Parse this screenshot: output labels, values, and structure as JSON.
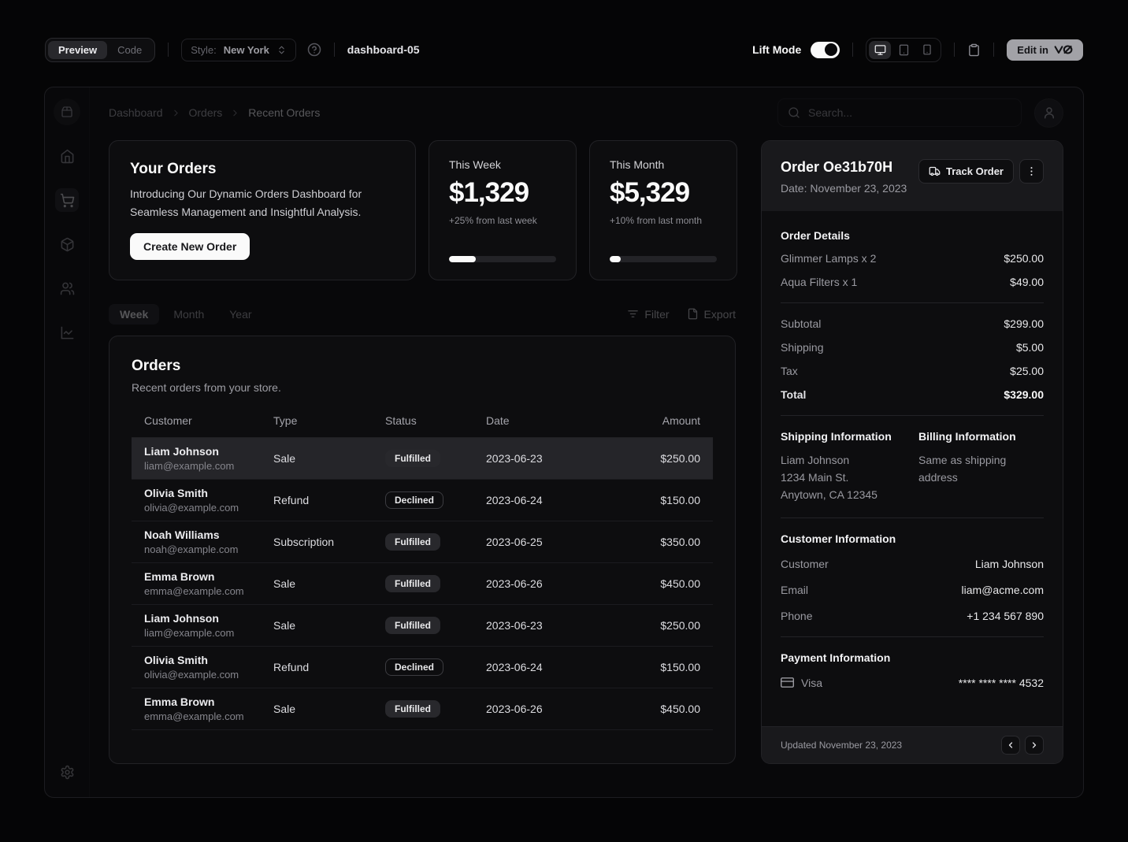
{
  "toolbar": {
    "preview_label": "Preview",
    "code_label": "Code",
    "style_label": "Style:",
    "style_value": "New York",
    "component_name": "dashboard-05",
    "lift_mode_label": "Lift Mode",
    "lift_mode_on": true,
    "edit_label": "Edit in",
    "icons": [
      "chevrons-up-down-icon",
      "help-circle-icon",
      "monitor-icon",
      "tablet-icon",
      "smartphone-icon",
      "clipboard-icon",
      "v0-logo-icon"
    ]
  },
  "dashboard": {
    "breadcrumb": [
      "Dashboard",
      "Orders",
      "Recent Orders"
    ],
    "search_placeholder": "Search...",
    "sidebar_icons": [
      "package-logo-icon",
      "home-icon",
      "shopping-cart-icon",
      "package-icon",
      "users-icon",
      "line-chart-icon",
      "settings-icon"
    ],
    "colors": {
      "accent": "#28282c",
      "card_bg": "#0d0d0f",
      "foreground": "#fafafa",
      "muted": "#9a9aa1"
    }
  },
  "promo_card": {
    "title": "Your Orders",
    "description": "Introducing Our Dynamic Orders Dashboard for Seamless Management and Insightful Analysis.",
    "cta": "Create New Order"
  },
  "stats": [
    {
      "label": "This Week",
      "value": "$1,329",
      "delta": "+25% from last week",
      "progress_percent": 25
    },
    {
      "label": "This Month",
      "value": "$5,329",
      "delta": "+10% from last month",
      "progress_percent": 10
    }
  ],
  "period_tabs": [
    "Week",
    "Month",
    "Year"
  ],
  "table_actions": {
    "filter": "Filter",
    "export": "Export"
  },
  "orders": {
    "title": "Orders",
    "description": "Recent orders from your store.",
    "columns": [
      "Customer",
      "Type",
      "Status",
      "Date",
      "Amount"
    ],
    "rows": [
      {
        "name": "Liam Johnson",
        "email": "liam@example.com",
        "type": "Sale",
        "status": "Fulfilled",
        "status_variant": "secondary",
        "date": "2023-06-23",
        "amount": "$250.00",
        "selected": true
      },
      {
        "name": "Olivia Smith",
        "email": "olivia@example.com",
        "type": "Refund",
        "status": "Declined",
        "status_variant": "outline",
        "date": "2023-06-24",
        "amount": "$150.00",
        "selected": false
      },
      {
        "name": "Noah Williams",
        "email": "noah@example.com",
        "type": "Subscription",
        "status": "Fulfilled",
        "status_variant": "secondary",
        "date": "2023-06-25",
        "amount": "$350.00",
        "selected": false
      },
      {
        "name": "Emma Brown",
        "email": "emma@example.com",
        "type": "Sale",
        "status": "Fulfilled",
        "status_variant": "secondary",
        "date": "2023-06-26",
        "amount": "$450.00",
        "selected": false
      },
      {
        "name": "Liam Johnson",
        "email": "liam@example.com",
        "type": "Sale",
        "status": "Fulfilled",
        "status_variant": "secondary",
        "date": "2023-06-23",
        "amount": "$250.00",
        "selected": false
      },
      {
        "name": "Olivia Smith",
        "email": "olivia@example.com",
        "type": "Refund",
        "status": "Declined",
        "status_variant": "outline",
        "date": "2023-06-24",
        "amount": "$150.00",
        "selected": false
      },
      {
        "name": "Emma Brown",
        "email": "emma@example.com",
        "type": "Sale",
        "status": "Fulfilled",
        "status_variant": "secondary",
        "date": "2023-06-26",
        "amount": "$450.00",
        "selected": false
      }
    ]
  },
  "order_panel": {
    "title": "Order Oe31b70H",
    "date": "Date: November 23, 2023",
    "track_label": "Track Order",
    "details_title": "Order Details",
    "items": [
      {
        "label": "Glimmer Lamps x 2",
        "value": "$250.00"
      },
      {
        "label": "Aqua Filters x 1",
        "value": "$49.00"
      }
    ],
    "summary": [
      {
        "label": "Subtotal",
        "value": "$299.00"
      },
      {
        "label": "Shipping",
        "value": "$5.00"
      },
      {
        "label": "Tax",
        "value": "$25.00"
      }
    ],
    "total": {
      "label": "Total",
      "value": "$329.00"
    },
    "shipping": {
      "title": "Shipping Information",
      "lines": [
        "Liam Johnson",
        "1234 Main St.",
        "Anytown, CA 12345"
      ]
    },
    "billing": {
      "title": "Billing Information",
      "note": "Same as shipping address"
    },
    "customer": {
      "title": "Customer Information",
      "rows": [
        {
          "label": "Customer",
          "value": "Liam Johnson"
        },
        {
          "label": "Email",
          "value": "liam@acme.com"
        },
        {
          "label": "Phone",
          "value": "+1 234 567 890"
        }
      ]
    },
    "payment": {
      "title": "Payment Information",
      "method": "Visa",
      "number": "**** **** **** 4532"
    },
    "footer": {
      "updated": "Updated November 23, 2023"
    }
  }
}
